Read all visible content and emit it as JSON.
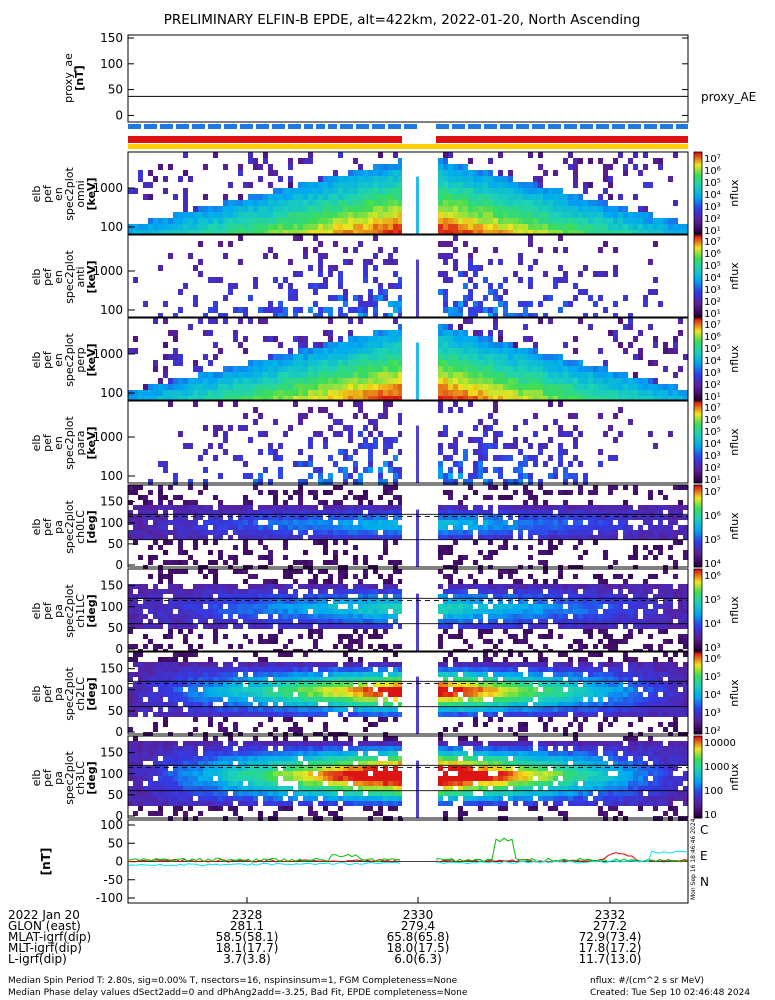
{
  "title": "PRELIMINARY ELFIN-B EPDE, alt=422km, 2022-01-20, North Ascending",
  "panels": {
    "proxy_ae": {
      "ylabel": [
        "proxy_ae",
        "[nT]"
      ],
      "yticks": [
        "150",
        "100",
        "50",
        "0"
      ],
      "series_label": "proxy_AE",
      "value": 37
    },
    "energy": [
      {
        "ylabel": [
          "elb",
          "pef",
          "en",
          "spec2plot",
          "omni",
          "[keV]"
        ],
        "yticks": [
          "1000",
          "100"
        ]
      },
      {
        "ylabel": [
          "elb",
          "pef",
          "en",
          "spec2plot",
          "anti",
          "[keV]"
        ],
        "yticks": [
          "1000",
          "100"
        ]
      },
      {
        "ylabel": [
          "elb",
          "pef",
          "en",
          "spec2plot",
          "perp",
          "[keV]"
        ],
        "yticks": [
          "1000",
          "100"
        ]
      },
      {
        "ylabel": [
          "elb",
          "pef",
          "en",
          "spec2plot",
          "para",
          "[keV]"
        ],
        "yticks": [
          "1000",
          "100"
        ]
      }
    ],
    "pitch": [
      {
        "ylabel": [
          "elb",
          "pef",
          "pa",
          "spec2plot",
          "ch0LC",
          "[deg]"
        ]
      },
      {
        "ylabel": [
          "elb",
          "pef",
          "pa",
          "spec2plot",
          "ch1LC",
          "[deg]"
        ]
      },
      {
        "ylabel": [
          "elb",
          "pef",
          "pa",
          "spec2plot",
          "ch2LC",
          "[deg]"
        ]
      },
      {
        "ylabel": [
          "elb",
          "pef",
          "pa",
          "spec2plot",
          "ch3LC",
          "[deg]"
        ]
      }
    ],
    "pitch_yticks": [
      "150",
      "100",
      "50",
      "0"
    ],
    "mag": {
      "ylabel": "[nT]",
      "yticks": [
        "100",
        "50",
        "0",
        "-50",
        "-100"
      ],
      "legend": [
        {
          "label": "C",
          "color": "#00e5ee"
        },
        {
          "label": "E",
          "color": "#e00000"
        },
        {
          "label": "N",
          "color": "#00c000"
        }
      ]
    }
  },
  "colorbars": {
    "unit_label": "nflux",
    "energy_ticks": [
      "10⁷",
      "10⁶",
      "10⁵",
      "10⁴",
      "10³",
      "10²",
      "10¹"
    ],
    "pitch_ticks": [
      [
        "10⁷",
        "10⁶",
        "10⁵",
        "10⁴"
      ],
      [
        "10⁶",
        "10⁵",
        "10⁴",
        "10³"
      ],
      [
        "10⁶",
        "10⁵",
        "10⁴",
        "10³",
        "10²"
      ],
      [
        "10000",
        "1000",
        "100",
        "10"
      ]
    ]
  },
  "xaxis": {
    "row_labels": [
      "2022 Jan 20",
      "GLON (east)",
      "MLAT-igrf(dip)",
      "MLT-igrf(dip)",
      "L-igrf(dip)"
    ],
    "columns": [
      {
        "time": "2328",
        "values": [
          "281.1",
          "58.5(58.1)",
          "18.1(17.7)",
          "3.7(3.8)"
        ]
      },
      {
        "time": "2330",
        "values": [
          "279.4",
          "65.8(65.8)",
          "18.0(17.5)",
          "6.0(6.3)"
        ]
      },
      {
        "time": "2332",
        "values": [
          "277.2",
          "72.9(73.4)",
          "17.8(17.2)",
          "11.7(13.0)"
        ]
      }
    ]
  },
  "footer": {
    "line1": "Median Spin Period T: 2.80s, sig=0.00% T, nsectors=16, nspinsinsum=1, FGM Completeness=None",
    "line2": "Median Phase delay values dSect2add=0 and dPhAng2add=-3.25, Bad Fit, EPDE completeness=None",
    "units": "nflux: #/(cm^2 s sr MeV)",
    "created": "Created: Tue Sep 10 02:46:48 2024"
  },
  "side_stamp": "Mon Sep 16 18:46:46 2024",
  "status_bars": {
    "blue_color": "#1e78e6",
    "red_color": "#dd1111",
    "yellow_color": "#ffd000"
  },
  "chart_data": {
    "type": "heatmap",
    "title": "PRELIMINARY ELFIN-B EPDE, alt=422km, 2022-01-20, North Ascending",
    "x": [
      "2328",
      "2330",
      "2332"
    ],
    "energy_ylim_keV": [
      70,
      3000
    ],
    "pitch_ylim_deg": [
      0,
      180
    ],
    "proxy_ae_ylim": [
      -10,
      160
    ],
    "mag_ylim": [
      -110,
      110
    ],
    "proxy_ae_value_nT": 37
  }
}
